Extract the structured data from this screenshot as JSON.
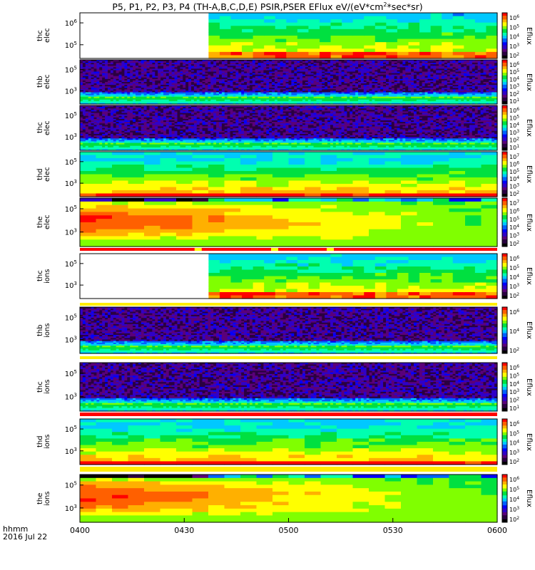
{
  "title_prefix": "P5, P1, P2, P3, P4 (TH-A,B,C,D,E) PSIR,PSER EFlux eV/(eV*cm",
  "title_sup": "2",
  "title_suffix": "*sec*sr)",
  "corner": {
    "line1": "hhmm",
    "line2": "2016 Jul 22"
  },
  "chart_data": {
    "type": "heatmap",
    "x_ticks": [
      "0400",
      "0430",
      "0500",
      "0530",
      "0600"
    ],
    "x_range": [
      "04:00",
      "06:00"
    ],
    "colorbar_label": "Eflux",
    "panels": [
      {
        "label": [
          "thc",
          "elec"
        ],
        "y_ticks": [
          "10^6",
          "10^5"
        ],
        "cb_ticks": [
          "10^6",
          "10^5",
          "10^4",
          "10^3",
          "10^2"
        ],
        "pattern": "gap-then-cool",
        "data_start": "04:37"
      },
      {
        "label": [
          "thb",
          "elec"
        ],
        "y_ticks": [
          "10^5",
          "10^3"
        ],
        "cb_ticks": [
          "10^6",
          "10^5",
          "10^4",
          "10^3",
          "10^2",
          "10^1"
        ],
        "pattern": "noise"
      },
      {
        "label": [
          "thc",
          "elec"
        ],
        "y_ticks": [
          "10^5",
          "10^3"
        ],
        "cb_ticks": [
          "10^6",
          "10^5",
          "10^4",
          "10^3",
          "10^2",
          "10^1"
        ],
        "pattern": "noise"
      },
      {
        "label": [
          "thd",
          "elec"
        ],
        "y_ticks": [
          "10^5",
          "10^3"
        ],
        "cb_ticks": [
          "10^7",
          "10^6",
          "10^5",
          "10^4",
          "10^3",
          "10^2"
        ],
        "pattern": "warm"
      },
      {
        "label": [
          "the",
          "elec"
        ],
        "y_ticks": [
          "10^5",
          "10^3"
        ],
        "cb_ticks": [
          "10^7",
          "10^6",
          "10^5",
          "10^4",
          "10^3",
          "10^2"
        ],
        "pattern": "hot-decay"
      },
      {
        "label": [
          "thc",
          "ions"
        ],
        "y_ticks": [
          "10^5",
          "10^3"
        ],
        "cb_ticks": [
          "10^6",
          "10^5",
          "10^4",
          "10^3",
          "10^2"
        ],
        "pattern": "gap-then-cool",
        "data_start": "04:37"
      },
      {
        "label": [
          "thb",
          "ions"
        ],
        "y_ticks": [
          "10^5",
          "10^3"
        ],
        "cb_ticks": [
          "10^6",
          "10^4",
          "10^2"
        ],
        "pattern": "noise"
      },
      {
        "label": [
          "thc",
          "ions"
        ],
        "y_ticks": [
          "10^5",
          "10^3"
        ],
        "cb_ticks": [
          "10^6",
          "10^5",
          "10^4",
          "10^3",
          "10^2",
          "10^1"
        ],
        "pattern": "noise"
      },
      {
        "label": [
          "thd",
          "ions"
        ],
        "y_ticks": [
          "10^5",
          "10^3"
        ],
        "cb_ticks": [
          "10^6",
          "10^5",
          "10^4",
          "10^3",
          "10^2"
        ],
        "pattern": "warm"
      },
      {
        "label": [
          "the",
          "ions"
        ],
        "y_ticks": [
          "10^5",
          "10^3"
        ],
        "cb_ticks": [
          "10^6",
          "10^5",
          "10^4",
          "10^3",
          "10^2"
        ],
        "pattern": "hot-decay"
      }
    ],
    "quality_bars": [
      {
        "after_panel": 4,
        "color": "#ff0000",
        "gaps": [
          "04:34",
          "04:56",
          "05:12"
        ]
      },
      {
        "after_panel": 5,
        "color": "#ffee00"
      },
      {
        "after_panel": 6,
        "color": "#ffee00"
      },
      {
        "after_panel": 7,
        "color": "#ff0000"
      },
      {
        "after_panel": 8,
        "color": "#ffee00"
      }
    ],
    "colormap": [
      "#000000",
      "#2a0040",
      "#5a007a",
      "#3000c8",
      "#0000ff",
      "#0060ff",
      "#00c8ff",
      "#00ffb0",
      "#00e040",
      "#80ff00",
      "#ffff00",
      "#ffb000",
      "#ff6000",
      "#ff0000"
    ]
  }
}
